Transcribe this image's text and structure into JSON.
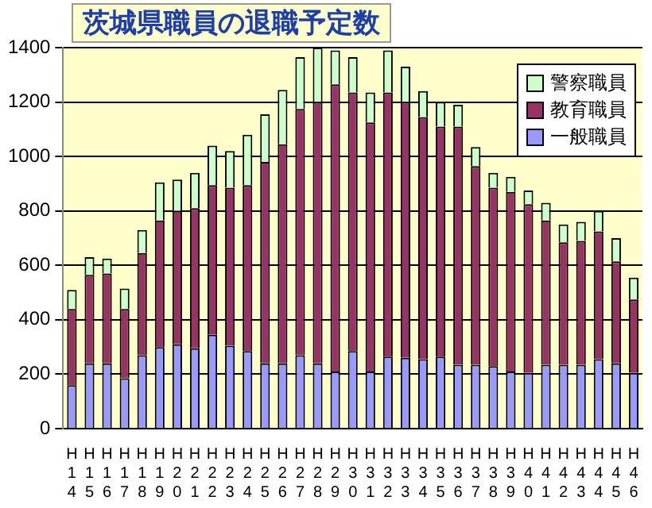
{
  "chart_data": {
    "type": "bar",
    "title": "茨城県職員の退職予定数",
    "stacked": true,
    "categories": [
      "H14",
      "H15",
      "H16",
      "H17",
      "H18",
      "H19",
      "H20",
      "H21",
      "H22",
      "H23",
      "H24",
      "H25",
      "H26",
      "H27",
      "H28",
      "H29",
      "H30",
      "H31",
      "H32",
      "H33",
      "H34",
      "H35",
      "H36",
      "H37",
      "H38",
      "H39",
      "H40",
      "H41",
      "H42",
      "H43",
      "H44",
      "H45",
      "H46"
    ],
    "series": [
      {
        "name": "一般職員",
        "color": "#9999ff",
        "values": [
          160,
          240,
          240,
          185,
          270,
          300,
          310,
          295,
          345,
          305,
          285,
          240,
          240,
          270,
          240,
          210,
          285,
          210,
          265,
          260,
          255,
          265,
          235,
          235,
          230,
          210,
          205,
          235,
          235,
          235,
          255,
          240,
          205
        ]
      },
      {
        "name": "教育職員",
        "color": "#993366",
        "values": [
          280,
          325,
          330,
          255,
          375,
          465,
          490,
          515,
          550,
          580,
          610,
          740,
          805,
          905,
          960,
          1055,
          950,
          915,
          970,
          940,
          890,
          845,
          875,
          730,
          655,
          660,
          620,
          530,
          450,
          455,
          470,
          375,
          270
        ]
      },
      {
        "name": "警察職員",
        "color": "#ccffcc",
        "values": [
          70,
          65,
          55,
          75,
          85,
          140,
          115,
          130,
          145,
          135,
          185,
          175,
          200,
          190,
          200,
          125,
          130,
          110,
          155,
          130,
          95,
          90,
          80,
          70,
          55,
          55,
          50,
          65,
          65,
          70,
          75,
          85,
          80
        ]
      }
    ],
    "ylim": [
      0,
      1400
    ],
    "yticks": [
      0,
      200,
      400,
      600,
      800,
      1000,
      1200,
      1400
    ],
    "grid": "y",
    "legend": "top right"
  }
}
